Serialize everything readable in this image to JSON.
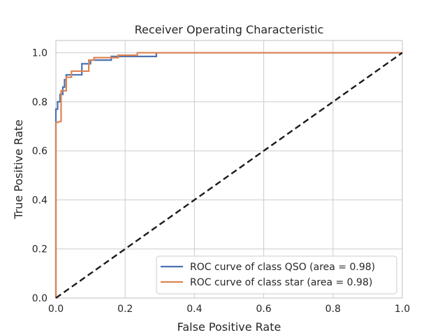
{
  "chart_data": {
    "type": "line",
    "title": "Receiver Operating Characteristic",
    "xlabel": "False Positive Rate",
    "ylabel": "True Positive Rate",
    "xlim": [
      0.0,
      1.0
    ],
    "ylim": [
      0.0,
      1.05
    ],
    "xticks": [
      "0.0",
      "0.2",
      "0.4",
      "0.6",
      "0.8",
      "1.0"
    ],
    "yticks": [
      "0.0",
      "0.2",
      "0.4",
      "0.6",
      "0.8",
      "1.0"
    ],
    "grid": true,
    "legend_position": "lower-right",
    "series": [
      {
        "name": "ROC curve of class QSO (area = 0.98)",
        "color": "#4c72b0",
        "x": [
          0.0,
          0.0,
          0.005,
          0.005,
          0.012,
          0.012,
          0.02,
          0.02,
          0.025,
          0.025,
          0.03,
          0.03,
          0.075,
          0.075,
          0.1,
          0.1,
          0.16,
          0.16,
          0.29,
          0.29,
          1.0
        ],
        "y": [
          0.0,
          0.77,
          0.77,
          0.8,
          0.8,
          0.83,
          0.83,
          0.86,
          0.86,
          0.89,
          0.89,
          0.91,
          0.91,
          0.955,
          0.955,
          0.97,
          0.97,
          0.985,
          0.985,
          1.0,
          1.0
        ]
      },
      {
        "name": "ROC curve of class star (area = 0.98)",
        "color": "#dd8452",
        "x": [
          0.0,
          0.0,
          0.015,
          0.015,
          0.03,
          0.03,
          0.045,
          0.045,
          0.095,
          0.095,
          0.11,
          0.11,
          0.18,
          0.18,
          0.235,
          0.235,
          1.0
        ],
        "y": [
          0.0,
          0.715,
          0.72,
          0.845,
          0.845,
          0.9,
          0.9,
          0.925,
          0.925,
          0.97,
          0.97,
          0.98,
          0.98,
          0.99,
          0.99,
          1.0,
          1.0
        ]
      },
      {
        "name": "",
        "color": "#1a1a1a",
        "dashed": true,
        "x": [
          0.0,
          1.0
        ],
        "y": [
          0.0,
          1.0
        ]
      }
    ]
  }
}
